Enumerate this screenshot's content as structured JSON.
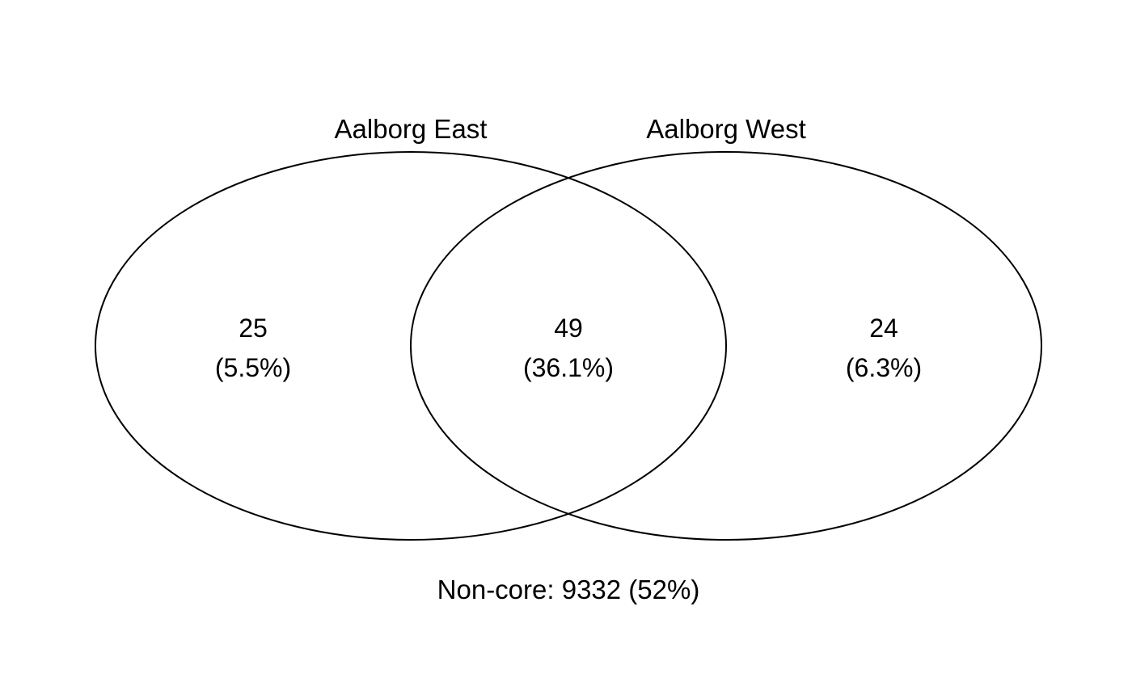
{
  "sets": [
    {
      "label": "Aalborg East"
    },
    {
      "label": "Aalborg West"
    }
  ],
  "regions": {
    "east_only": {
      "count": "25",
      "percent": "(5.5%)"
    },
    "both": {
      "count": "49",
      "percent": "(36.1%)"
    },
    "west_only": {
      "count": "24",
      "percent": "(6.3%)"
    }
  },
  "non_core": "Non-core: 9332 (52%)"
}
